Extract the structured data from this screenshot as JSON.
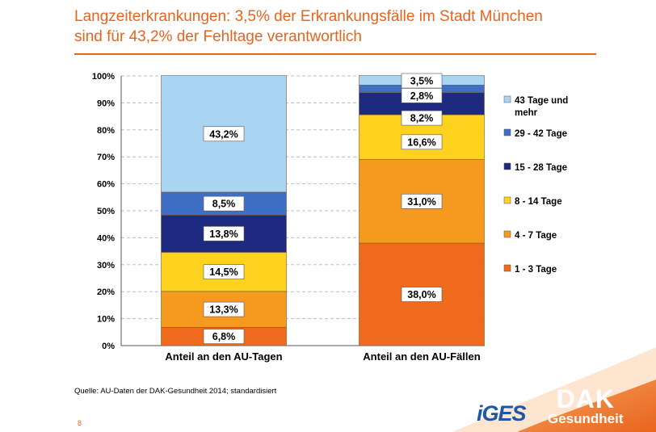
{
  "title_line1": "Langzeiterkrankungen: 3,5% der Erkrankungsfälle im Stadt München",
  "title_line2": "sind für 43,2% der Fehltage verantwortlich",
  "source": "Quelle: AU-Daten der DAK-Gesundheit 2014; standardisiert",
  "page_number": "8",
  "logo_iges": "iGES",
  "logo_dak_top": "DAK",
  "logo_dak_bottom": "Gesundheit",
  "chart_data": {
    "type": "bar",
    "stacked": true,
    "categories": [
      "Anteil an den AU-Tagen",
      "Anteil an den AU-Fällen"
    ],
    "ylim": [
      0,
      100
    ],
    "yticks": [
      "0%",
      "10%",
      "20%",
      "30%",
      "40%",
      "50%",
      "60%",
      "70%",
      "80%",
      "90%",
      "100%"
    ],
    "grid": true,
    "legend_position": "right",
    "series": [
      {
        "name": "1 - 3 Tage",
        "color": "#ef6a1d",
        "values": [
          6.8,
          38.0
        ],
        "labels": [
          "6,8%",
          "38,0%"
        ]
      },
      {
        "name": "4 - 7 Tage",
        "color": "#f59a1f",
        "values": [
          13.3,
          31.0
        ],
        "labels": [
          "13,3%",
          "31,0%"
        ]
      },
      {
        "name": "8 - 14 Tage",
        "color": "#fcd21e",
        "values": [
          14.5,
          16.6
        ],
        "labels": [
          "14,5%",
          "16,6%"
        ]
      },
      {
        "name": "15 - 28 Tage",
        "color": "#1e2a80",
        "values": [
          13.8,
          8.2
        ],
        "labels": [
          "13,8%",
          "8,2%"
        ]
      },
      {
        "name": "29 - 42 Tage",
        "color": "#3f6fc4",
        "values": [
          8.5,
          2.8
        ],
        "labels": [
          "8,5%",
          "2,8%"
        ]
      },
      {
        "name": "43 Tage und mehr",
        "color": "#a9d4f2",
        "values": [
          43.2,
          3.5
        ],
        "labels": [
          "43,2%",
          "3,5%"
        ]
      }
    ]
  }
}
